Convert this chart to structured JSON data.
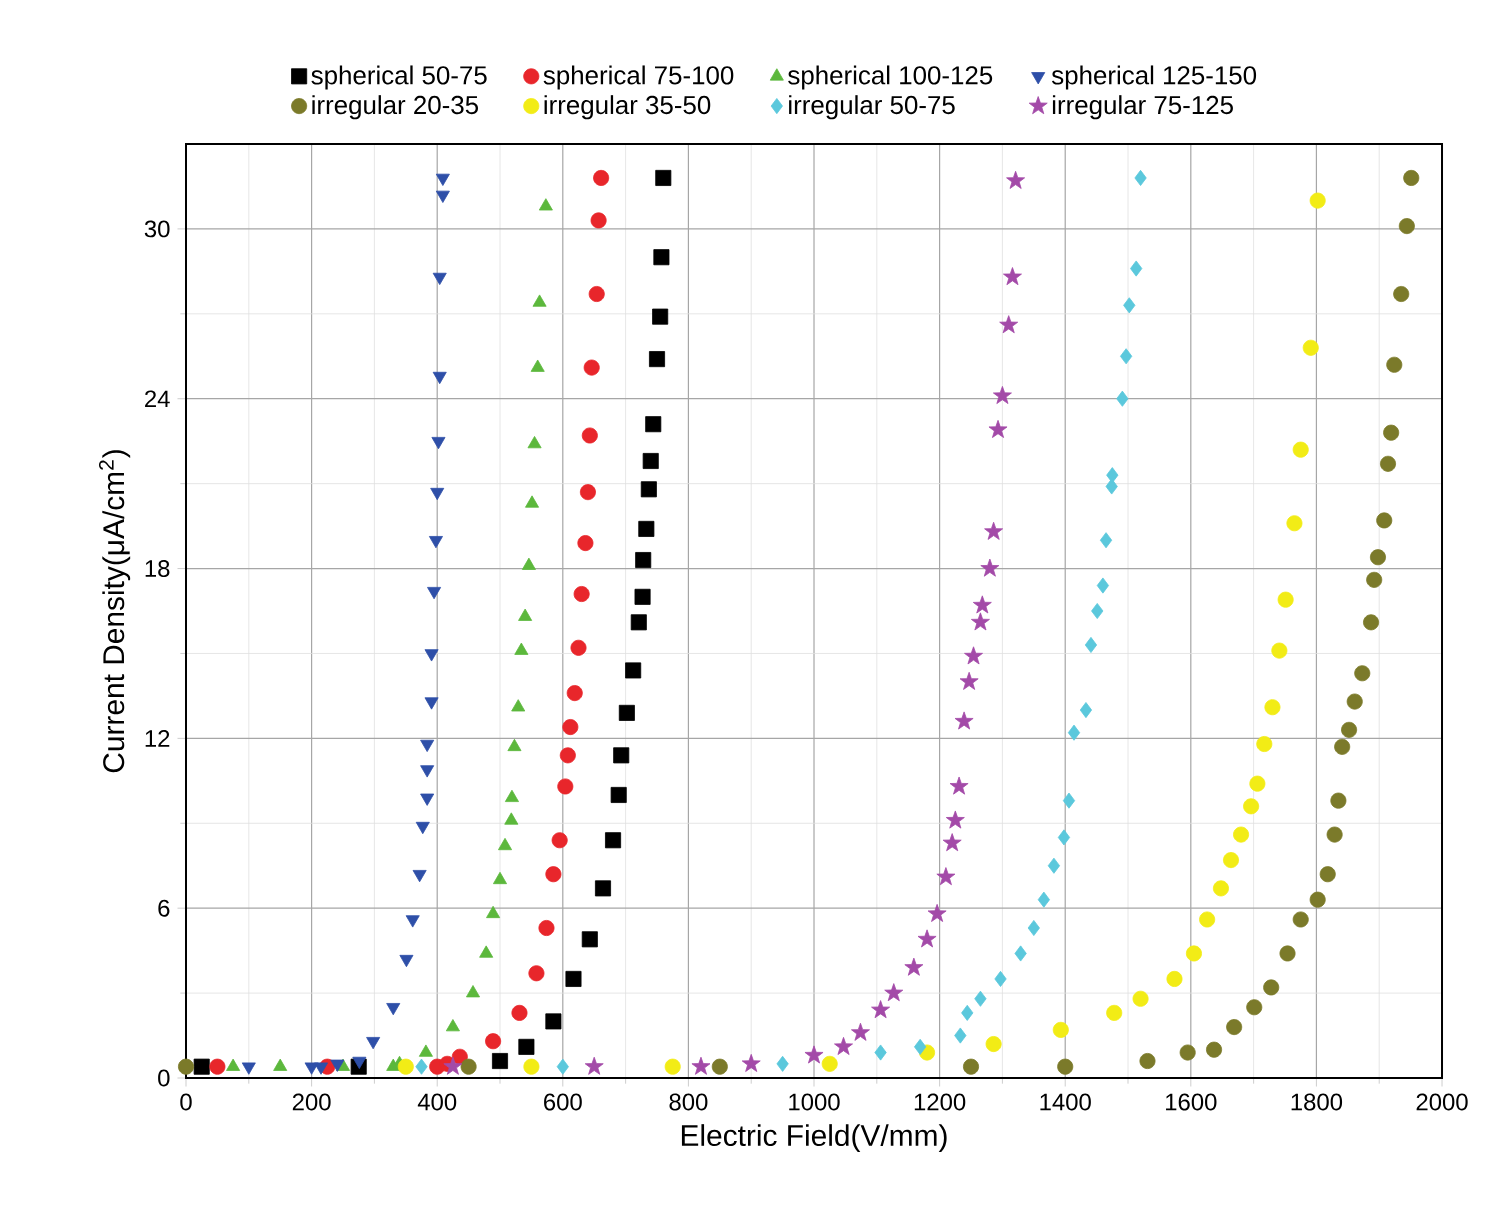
{
  "chart_data": {
    "type": "scatter",
    "xlabel": "Electric Field(V/mm)",
    "ylabel": "Current Density(μA/cm$^{2}$)",
    "xlim": [
      0,
      2000
    ],
    "ylim": [
      0,
      33
    ],
    "xticks": [
      0,
      200,
      400,
      600,
      800,
      1000,
      1200,
      1400,
      1600,
      1800,
      2000
    ],
    "yticks": [
      0,
      6,
      12,
      18,
      24,
      30
    ],
    "grid": true,
    "legend": "top",
    "series": [
      {
        "name": "spherical 50-75",
        "color": "#000000",
        "marker": "square",
        "x": [
          25,
          275,
          500,
          542,
          585,
          617,
          643,
          664,
          680,
          689,
          693,
          702,
          712,
          721,
          727,
          728,
          733,
          737,
          740,
          744,
          750,
          755,
          757,
          760
        ],
        "values": [
          0.4,
          0.4,
          0.6,
          1.1,
          2.0,
          3.5,
          4.9,
          6.7,
          8.4,
          10.0,
          11.4,
          12.9,
          14.4,
          16.1,
          17.0,
          18.3,
          19.4,
          20.8,
          21.8,
          23.1,
          25.4,
          26.9,
          29.0,
          31.8
        ]
      },
      {
        "name": "spherical 75-100",
        "color": "#e8262b",
        "marker": "circle",
        "x": [
          50,
          225,
          400,
          416,
          436,
          489,
          531,
          558,
          574,
          585,
          595,
          604,
          608,
          612,
          619,
          625,
          630,
          636,
          640,
          643,
          646,
          654,
          657,
          661
        ],
        "values": [
          0.4,
          0.4,
          0.4,
          0.5,
          0.75,
          1.3,
          2.3,
          3.7,
          5.3,
          7.2,
          8.4,
          10.3,
          11.4,
          12.4,
          13.6,
          15.2,
          17.1,
          18.9,
          20.7,
          22.7,
          25.1,
          27.7,
          30.3,
          31.8
        ]
      },
      {
        "name": "spherical 100-125",
        "color": "#5cb83c",
        "marker": "triangle",
        "x": [
          75,
          150,
          250,
          330,
          340,
          382,
          425,
          457,
          478,
          489,
          500,
          508,
          518,
          519,
          523,
          529,
          534,
          540,
          546,
          551,
          555,
          560,
          563,
          573
        ],
        "values": [
          0.4,
          0.4,
          0.4,
          0.4,
          0.5,
          0.9,
          1.8,
          3.0,
          4.4,
          5.8,
          7.0,
          8.2,
          9.1,
          9.9,
          11.7,
          13.1,
          15.1,
          16.3,
          18.1,
          20.3,
          22.4,
          25.1,
          27.4,
          30.8
        ]
      },
      {
        "name": "spherical 125-150",
        "color": "#2e4fa8",
        "marker": "triangle-down",
        "x": [
          100,
          200,
          215,
          241,
          276,
          298,
          330,
          351,
          361,
          372,
          377,
          384,
          384,
          384,
          391,
          391,
          395,
          398,
          400,
          402,
          404,
          404,
          409,
          409
        ],
        "values": [
          0.4,
          0.4,
          0.4,
          0.5,
          0.6,
          1.3,
          2.5,
          4.2,
          5.6,
          7.2,
          8.9,
          9.9,
          10.9,
          11.8,
          13.3,
          15.0,
          17.2,
          19.0,
          20.7,
          22.5,
          24.8,
          28.3,
          31.2,
          31.8
        ]
      },
      {
        "name": "irregular 20-35",
        "color": "#7b7a2a",
        "marker": "circle",
        "x": [
          0,
          450,
          850,
          1250,
          1400,
          1531,
          1595,
          1637,
          1669,
          1701,
          1728,
          1754,
          1775,
          1802,
          1818,
          1829,
          1835,
          1841,
          1852,
          1861,
          1873,
          1887,
          1892,
          1898,
          1908,
          1914,
          1919,
          1924,
          1935,
          1944,
          1951
        ],
        "values": [
          0.4,
          0.4,
          0.4,
          0.4,
          0.4,
          0.6,
          0.9,
          1.0,
          1.8,
          2.5,
          3.2,
          4.4,
          5.6,
          6.3,
          7.2,
          8.6,
          9.8,
          11.7,
          12.3,
          13.3,
          14.3,
          16.1,
          17.6,
          18.4,
          19.7,
          21.7,
          22.8,
          25.2,
          27.7,
          30.1,
          31.8
        ]
      },
      {
        "name": "irregular 35-50",
        "color": "#f2ec16",
        "marker": "circle",
        "x": [
          350,
          550,
          775,
          1025,
          1180,
          1286,
          1393,
          1478,
          1520,
          1574,
          1605,
          1626,
          1648,
          1664,
          1680,
          1696,
          1706,
          1717,
          1730,
          1741,
          1751,
          1765,
          1775,
          1791,
          1802
        ],
        "values": [
          0.4,
          0.4,
          0.4,
          0.5,
          0.9,
          1.2,
          1.7,
          2.3,
          2.8,
          3.5,
          4.4,
          5.6,
          6.7,
          7.7,
          8.6,
          9.6,
          10.4,
          11.8,
          13.1,
          15.1,
          16.9,
          19.6,
          22.2,
          25.8,
          31.0
        ]
      },
      {
        "name": "irregular 50-75",
        "color": "#5bc8dc",
        "marker": "diamond",
        "x": [
          375,
          600,
          950,
          1106,
          1169,
          1233,
          1244,
          1265,
          1297,
          1329,
          1350,
          1366,
          1382,
          1398,
          1406,
          1414,
          1433,
          1441,
          1451,
          1460,
          1465,
          1474,
          1475,
          1491,
          1497,
          1502,
          1513,
          1520
        ],
        "values": [
          0.4,
          0.4,
          0.5,
          0.9,
          1.1,
          1.5,
          2.3,
          2.8,
          3.5,
          4.4,
          5.3,
          6.3,
          7.5,
          8.5,
          9.8,
          12.2,
          13.0,
          15.3,
          16.5,
          17.4,
          19.0,
          20.9,
          21.3,
          24.0,
          25.5,
          27.3,
          28.6,
          31.8
        ]
      },
      {
        "name": "irregular 75-125",
        "color": "#a34aa8",
        "marker": "star",
        "x": [
          425,
          650,
          820,
          900,
          1000,
          1047,
          1074,
          1106,
          1127,
          1159,
          1180,
          1196,
          1210,
          1220,
          1225,
          1231,
          1239,
          1247,
          1254,
          1265,
          1268,
          1280,
          1286,
          1293,
          1300,
          1310,
          1316,
          1321
        ],
        "values": [
          0.4,
          0.4,
          0.4,
          0.5,
          0.8,
          1.1,
          1.6,
          2.4,
          3.0,
          3.9,
          4.9,
          5.8,
          7.1,
          8.3,
          9.1,
          10.3,
          12.6,
          14.0,
          14.9,
          16.1,
          16.7,
          18.0,
          19.3,
          22.9,
          24.1,
          26.6,
          28.3,
          31.7
        ]
      }
    ]
  }
}
